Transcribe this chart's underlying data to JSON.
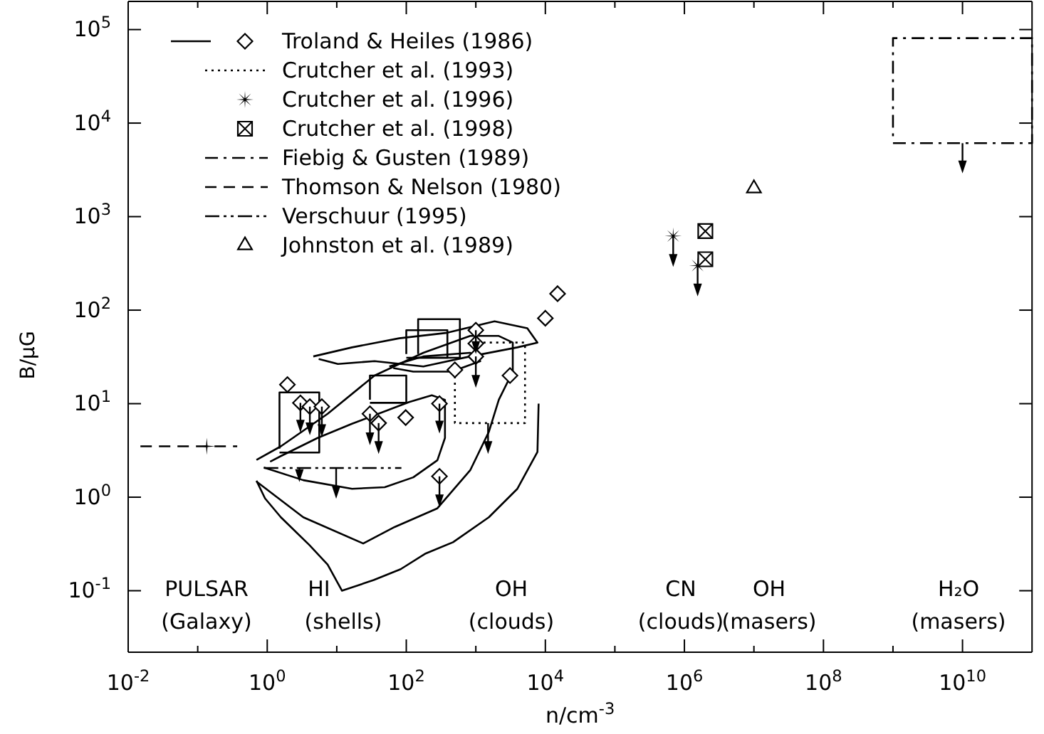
{
  "chart_data": {
    "type": "scatter",
    "xlabel": "n/cm$^{-3}$",
    "ylabel": "B/μG",
    "log": "xy",
    "legend": "top left",
    "xlim": [
      0.01,
      100000000000
    ],
    "ylim": [
      0.022,
      200000
    ],
    "xticks": [
      {
        "value": 0.01,
        "label": "10$^{-2}$"
      },
      {
        "value": 0.1,
        "label": null
      },
      {
        "value": 1,
        "label": "10$^{0}$"
      },
      {
        "value": 10,
        "label": null
      },
      {
        "value": 100,
        "label": "10$^{2}$"
      },
      {
        "value": 1000,
        "label": null
      },
      {
        "value": 10000,
        "label": "10$^{4}$"
      },
      {
        "value": 100000,
        "label": null
      },
      {
        "value": 1000000,
        "label": "10$^{6}$"
      },
      {
        "value": 10000000,
        "label": null
      },
      {
        "value": 100000000,
        "label": "10$^{8}$"
      },
      {
        "value": 1000000000,
        "label": null
      },
      {
        "value": 10000000000,
        "label": "10$^{10}$"
      }
    ],
    "yticks": [
      {
        "value": 0.1,
        "label": "10$^{-1}$"
      },
      {
        "value": 1,
        "label": "10$^{0}$"
      },
      {
        "value": 10,
        "label": "10$^{1}$"
      },
      {
        "value": 100,
        "label": "10$^{2}$"
      },
      {
        "value": 1000,
        "label": "10$^{3}$"
      },
      {
        "value": 10000,
        "label": "10$^{4}$"
      },
      {
        "value": 100000,
        "label": "10$^{5}$"
      }
    ],
    "series": [
      {
        "name": "Troland & Heiles (1986)",
        "marker": "diamond",
        "color": "#000000",
        "x": [
          15000,
          10000,
          1000,
          1000,
          1000,
          500,
          3100,
          1.95,
          3.0,
          4.1,
          6.1,
          30,
          40,
          98,
          300,
          300
        ],
        "values": [
          150,
          82,
          61,
          44,
          32,
          23,
          20,
          16,
          10.2,
          9.3,
          9.3,
          7.8,
          6.2,
          7.1,
          10,
          1.67
        ]
      },
      {
        "type": "line",
        "line_style": "solid",
        "color": "#000000",
        "x": [
          0.7,
          0.93,
          1.57,
          4.0,
          7.4,
          11.9,
          34,
          83,
          190,
          470,
          1540,
          3960,
          7700,
          8000
        ],
        "values": [
          1.5,
          0.97,
          0.61,
          0.31,
          0.19,
          0.1,
          0.13,
          0.17,
          0.25,
          0.33,
          0.61,
          1.23,
          3.05,
          10
        ]
      },
      {
        "type": "line",
        "line_style": "solid",
        "color": "#000000",
        "x": [
          0.7,
          3.3,
          24,
          68,
          280,
          830,
          1540,
          2140,
          3400,
          3400,
          2140,
          830,
          176,
          35,
          7.4,
          1.57,
          0.7
        ],
        "values": [
          1.47,
          0.61,
          0.32,
          0.48,
          0.76,
          1.94,
          5.0,
          11,
          22,
          45,
          53,
          53,
          35,
          20,
          7.8,
          3.5,
          2.5
        ]
      },
      {
        "type": "line",
        "line_style": "solid",
        "color": "#000000",
        "x": [
          0.89,
          3.3,
          16.6,
          49,
          126,
          280,
          360,
          360,
          233,
          110,
          16.6,
          5.3,
          1.57,
          1.1
        ],
        "values": [
          2.08,
          1.52,
          1.23,
          1.28,
          1.63,
          2.48,
          4.3,
          11,
          12.3,
          10.4,
          6.1,
          4.3,
          2.75,
          2.4
        ]
      },
      {
        "type": "line",
        "line_style": "solid",
        "color": "#000000",
        "x": [
          4.6,
          16.6,
          79,
          370,
          1860,
          5500,
          7700,
          3960,
          830,
          176,
          35,
          10.4,
          5.5
        ],
        "values": [
          32,
          40,
          50,
          57,
          76,
          64,
          45,
          40,
          32,
          25,
          28.5,
          26.6,
          30
        ]
      },
      {
        "type": "line",
        "line_style": "solid",
        "color": "#000000",
        "x": [
          57,
          176,
          830,
          1160,
          450,
          126,
          65
        ],
        "values": [
          25,
          32,
          35,
          28.5,
          22,
          22,
          24
        ]
      },
      {
        "type": "line",
        "line_style": "solid",
        "color": "#000000",
        "x": [
          1.5,
          5.6,
          5.6,
          1.5,
          1.5
        ],
        "values": [
          3.0,
          3.0,
          13.2,
          13.2,
          3.3
        ]
      },
      {
        "type": "line",
        "line_style": "solid",
        "color": "#000000",
        "x": [
          30,
          100,
          100,
          30,
          30
        ],
        "values": [
          10.2,
          10.2,
          20,
          20,
          11
        ]
      },
      {
        "type": "line",
        "line_style": "solid",
        "color": "#000000",
        "x": [
          148,
          590,
          590,
          148,
          148
        ],
        "values": [
          31,
          31,
          80,
          80,
          34
        ]
      },
      {
        "type": "line",
        "line_style": "solid",
        "color": "#000000",
        "x": [
          100,
          390,
          390,
          100,
          100
        ],
        "values": [
          31,
          31,
          61,
          61,
          34
        ]
      },
      {
        "name": "Crutcher et al. (1993)",
        "type": "line",
        "line_style": "dotted",
        "color": "#000000",
        "x": [
          500,
          500,
          1500,
          5100,
          5100,
          1000
        ],
        "values": [
          23,
          6.2,
          6.2,
          6.2,
          45,
          45
        ]
      },
      {
        "name": "Crutcher et al. (1996)",
        "marker": "star",
        "color": "#000000",
        "x": [
          690000,
          1550000
        ],
        "values": [
          620,
          300
        ]
      },
      {
        "name": "Crutcher et al. (1998)",
        "marker": "square",
        "color": "#000000",
        "x": [
          2000000,
          2000000
        ],
        "values": [
          700,
          350
        ]
      },
      {
        "name": "Fiebig & Gusten (1989)",
        "type": "line",
        "line_style": "dashdot",
        "color": "#000000",
        "x": [
          1000000000,
          10000000000,
          100000000000,
          100000000000,
          1000000000,
          1000000000
        ],
        "values": [
          6100,
          6100,
          6100,
          81000,
          81000,
          6600
        ]
      },
      {
        "name": "Thomson & Nelson (1980)",
        "type": "line",
        "line_style": "dashed",
        "color": "#000000",
        "x": [
          0.015,
          0.37
        ],
        "values": [
          3.5,
          3.5
        ]
      },
      {
        "marker": "cross",
        "color": "#000000",
        "x": [
          0.135
        ],
        "values": [
          3.5
        ]
      },
      {
        "name": "Verschuur (1995)",
        "type": "line",
        "line_style": "dashdotdot",
        "color": "#000000",
        "x": [
          0.9,
          2.9,
          9.8,
          85
        ],
        "values": [
          2.05,
          2.05,
          2.05,
          2.05
        ]
      },
      {
        "name": "Johnston et al. (1989)",
        "marker": "triangle",
        "color": "#000000",
        "x": [
          10000000
        ],
        "values": [
          2000
        ]
      }
    ],
    "annotations": [
      "PULSAR\n(Galaxy)",
      "HI\n(shells)",
      "OH\n(clouds)",
      "CN\n(clouds)",
      "OH\n(masers)",
      "H₂O\n(masers)"
    ]
  }
}
